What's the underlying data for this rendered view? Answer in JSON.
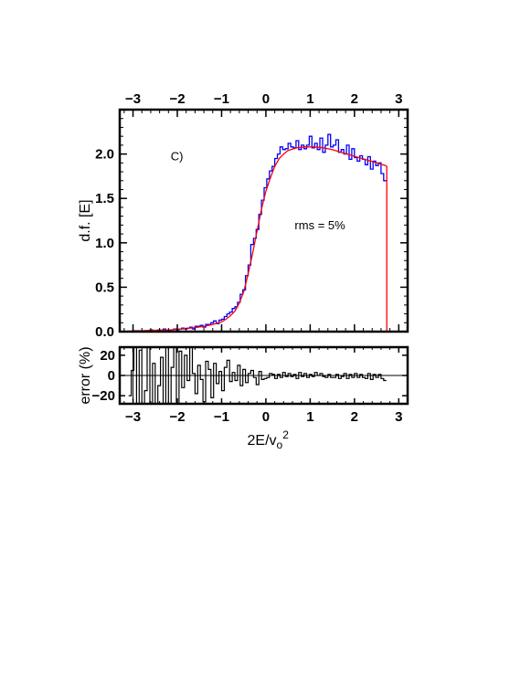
{
  "chart_data": [
    {
      "type": "line",
      "panel": "distribution",
      "xlabel": "2E/v",
      "xlabel_sub": "o",
      "xlabel_sup": "2",
      "ylabel": "d.f. [E]",
      "xlim": [
        -3.3,
        3.2
      ],
      "ylim": [
        0,
        2.5
      ],
      "xticks": [
        -3,
        -2,
        -1,
        0,
        1,
        2,
        3
      ],
      "xtick_labels": [
        "−3",
        "−2",
        "−1",
        "0",
        "1",
        "2",
        "3"
      ],
      "yticks": [
        0.0,
        0.5,
        1.0,
        1.5,
        2.0
      ],
      "ytick_labels": [
        "0.0",
        "0.5",
        "1.0",
        "1.5",
        "2.0"
      ],
      "annotations": [
        {
          "text": "C)",
          "x": -2.15,
          "y": 1.93
        },
        {
          "text": "rms = 5%",
          "x": 0.65,
          "y": 1.15
        }
      ],
      "series": [
        {
          "style": "histogram",
          "color": "#0000ff",
          "bin_width": 0.06,
          "x": [
            -3.1,
            -3.04,
            -2.98,
            -2.92,
            -2.86,
            -2.8,
            -2.74,
            -2.68,
            -2.62,
            -2.56,
            -2.5,
            -2.44,
            -2.38,
            -2.32,
            -2.26,
            -2.2,
            -2.14,
            -2.08,
            -2.02,
            -1.96,
            -1.9,
            -1.84,
            -1.78,
            -1.72,
            -1.66,
            -1.6,
            -1.54,
            -1.48,
            -1.42,
            -1.36,
            -1.3,
            -1.24,
            -1.18,
            -1.12,
            -1.06,
            -1.0,
            -0.94,
            -0.88,
            -0.82,
            -0.76,
            -0.7,
            -0.64,
            -0.58,
            -0.52,
            -0.46,
            -0.4,
            -0.34,
            -0.28,
            -0.22,
            -0.16,
            -0.1,
            -0.04,
            0.02,
            0.08,
            0.14,
            0.2,
            0.26,
            0.32,
            0.38,
            0.44,
            0.5,
            0.56,
            0.62,
            0.68,
            0.74,
            0.8,
            0.86,
            0.92,
            0.98,
            1.04,
            1.1,
            1.16,
            1.22,
            1.28,
            1.34,
            1.4,
            1.46,
            1.52,
            1.58,
            1.64,
            1.7,
            1.76,
            1.82,
            1.88,
            1.94,
            2.0,
            2.06,
            2.12,
            2.18,
            2.24,
            2.3,
            2.36,
            2.42,
            2.48,
            2.54,
            2.6,
            2.66
          ],
          "y": [
            0.0,
            0.0,
            0.01,
            0.01,
            0.0,
            0.0,
            0.01,
            0.01,
            0.02,
            0.0,
            0.0,
            0.02,
            0.01,
            0.03,
            0.01,
            0.01,
            0.02,
            0.03,
            0.02,
            0.03,
            0.04,
            0.03,
            0.04,
            0.05,
            0.03,
            0.06,
            0.06,
            0.07,
            0.05,
            0.08,
            0.08,
            0.1,
            0.12,
            0.09,
            0.13,
            0.14,
            0.17,
            0.2,
            0.22,
            0.26,
            0.28,
            0.33,
            0.42,
            0.47,
            0.63,
            0.75,
            0.98,
            1.05,
            1.15,
            1.32,
            1.48,
            1.62,
            1.72,
            1.81,
            1.86,
            1.95,
            2.0,
            2.08,
            2.05,
            2.06,
            2.12,
            2.08,
            2.07,
            2.15,
            2.05,
            2.1,
            2.06,
            2.1,
            2.2,
            2.07,
            2.12,
            2.05,
            2.18,
            2.02,
            2.1,
            2.22,
            2.08,
            2.1,
            2.16,
            2.02,
            2.05,
            2.0,
            2.1,
            1.94,
            2.06,
            1.96,
            1.92,
            1.98,
            1.94,
            1.88,
            1.97,
            1.83,
            1.92,
            1.87,
            1.9,
            1.78,
            1.7
          ]
        },
        {
          "style": "line",
          "color": "#ff0000",
          "x": [
            -3.1,
            -2.8,
            -2.5,
            -2.2,
            -2.0,
            -1.8,
            -1.6,
            -1.4,
            -1.2,
            -1.0,
            -0.9,
            -0.8,
            -0.7,
            -0.6,
            -0.5,
            -0.4,
            -0.3,
            -0.2,
            -0.1,
            0.0,
            0.1,
            0.2,
            0.3,
            0.4,
            0.5,
            0.7,
            0.9,
            1.1,
            1.3,
            1.5,
            1.7,
            1.9,
            2.1,
            2.3,
            2.5,
            2.7,
            2.73,
            2.73
          ],
          "y": [
            0.005,
            0.01,
            0.015,
            0.02,
            0.025,
            0.035,
            0.045,
            0.06,
            0.08,
            0.11,
            0.14,
            0.18,
            0.23,
            0.32,
            0.45,
            0.65,
            0.88,
            1.13,
            1.38,
            1.58,
            1.73,
            1.86,
            1.95,
            2.0,
            2.04,
            2.07,
            2.08,
            2.08,
            2.07,
            2.05,
            2.02,
            1.99,
            1.96,
            1.93,
            1.9,
            1.87,
            1.86,
            0.0
          ]
        }
      ]
    },
    {
      "type": "line",
      "panel": "residuals",
      "ylabel": "error (%)",
      "xlim": [
        -3.3,
        3.2
      ],
      "ylim": [
        -28,
        28
      ],
      "yticks": [
        -20,
        0,
        20
      ],
      "ytick_labels": [
        "−20",
        "0",
        "20"
      ],
      "series": [
        {
          "style": "histogram",
          "color": "#000000",
          "bin_width": 0.06,
          "x": [
            -3.1,
            -3.04,
            -2.98,
            -2.92,
            -2.86,
            -2.8,
            -2.74,
            -2.68,
            -2.62,
            -2.56,
            -2.5,
            -2.44,
            -2.38,
            -2.32,
            -2.26,
            -2.2,
            -2.14,
            -2.08,
            -2.02,
            -1.96,
            -1.9,
            -1.84,
            -1.78,
            -1.72,
            -1.66,
            -1.6,
            -1.54,
            -1.48,
            -1.42,
            -1.36,
            -1.3,
            -1.24,
            -1.18,
            -1.12,
            -1.06,
            -1.0,
            -0.94,
            -0.88,
            -0.82,
            -0.76,
            -0.7,
            -0.64,
            -0.58,
            -0.52,
            -0.46,
            -0.4,
            -0.34,
            -0.28,
            -0.22,
            -0.16,
            -0.1,
            -0.04,
            0.02,
            0.08,
            0.14,
            0.2,
            0.26,
            0.32,
            0.38,
            0.44,
            0.5,
            0.56,
            0.62,
            0.68,
            0.74,
            0.8,
            0.86,
            0.92,
            0.98,
            1.04,
            1.1,
            1.16,
            1.22,
            1.28,
            1.34,
            1.4,
            1.46,
            1.52,
            1.58,
            1.64,
            1.7,
            1.76,
            1.82,
            1.88,
            1.94,
            2.0,
            2.06,
            2.12,
            2.18,
            2.24,
            2.3,
            2.36,
            2.42,
            2.48,
            2.54,
            2.6,
            2.66
          ],
          "y": [
            -20,
            5,
            28,
            -28,
            25,
            -28,
            -15,
            28,
            -28,
            12,
            -28,
            -10,
            18,
            -28,
            28,
            -28,
            8,
            28,
            -28,
            24,
            -12,
            20,
            -5,
            28,
            2,
            -18,
            10,
            -4,
            -26,
            14,
            6,
            -22,
            12,
            -8,
            4,
            -15,
            8,
            15,
            -6,
            3,
            -5,
            10,
            -10,
            6,
            -7,
            2,
            5,
            -2,
            -9,
            4,
            -4,
            -3,
            -2,
            2,
            1,
            -3,
            1,
            -2,
            3,
            -1,
            2,
            -1,
            1,
            -3,
            3,
            -1,
            2,
            -2,
            1,
            -1,
            3,
            0,
            2,
            -1,
            -2,
            1,
            -2,
            -2,
            1,
            -3,
            -1,
            2,
            -3,
            1,
            -2,
            2,
            -2,
            1,
            -2,
            -3,
            2,
            -4,
            1,
            -2,
            1,
            -3,
            -5
          ]
        }
      ]
    }
  ]
}
